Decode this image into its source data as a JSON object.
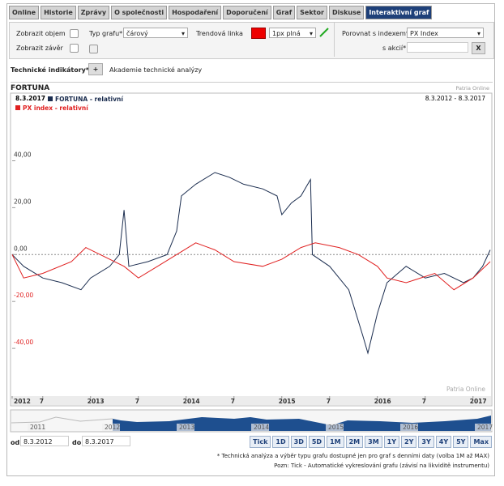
{
  "tabs": [
    "Online",
    "Historie",
    "Zprávy",
    "O společnosti",
    "Hospodaření",
    "Doporučení",
    "Graf",
    "Sektor",
    "Diskuse",
    "Interaktivní graf"
  ],
  "controls": {
    "show_volume": "Zobrazit objem",
    "show_close": "Zobrazit závěr",
    "chart_type_label": "Typ grafu*",
    "chart_type": "čárový",
    "trend_label": "Trendová linka",
    "trend_style": "1px plná",
    "compare_label": "Porovnat s indexem*",
    "compare_index": "PX Index",
    "compare_stock_label": "s akcií*",
    "clear": "X"
  },
  "indicators": {
    "label": "Technické indikátory*:",
    "add": "+",
    "academy": "Akademie technické analýzy"
  },
  "chart_data": {
    "type": "line",
    "title": "FORTUNA",
    "source": "Patria Online",
    "watermark": "Patria Online",
    "date": "8.3.2017",
    "range": "8.3.2012 - 8.3.2017",
    "series": [
      {
        "name": "FORTUNA - relativní",
        "color": "#1b2d4f",
        "x": [
          2012.18,
          2012.3,
          2012.5,
          2012.7,
          2012.9,
          2013.0,
          2013.2,
          2013.3,
          2013.35,
          2013.4,
          2013.6,
          2013.8,
          2013.9,
          2013.95,
          2014.1,
          2014.3,
          2014.45,
          2014.6,
          2014.8,
          2014.95,
          2015.0,
          2015.1,
          2015.2,
          2015.3,
          2015.32,
          2015.5,
          2015.7,
          2015.85,
          2015.9,
          2016.0,
          2016.1,
          2016.3,
          2016.5,
          2016.7,
          2016.9,
          2017.0,
          2017.1,
          2017.18
        ],
        "values": [
          0,
          -5,
          -10,
          -12,
          -15,
          -10,
          -5,
          0,
          19,
          -5,
          -3,
          0,
          10,
          25,
          30,
          35,
          33,
          30,
          28,
          25,
          17,
          22,
          25,
          32,
          0,
          -5,
          -15,
          -35,
          -42,
          -25,
          -12,
          -5,
          -10,
          -8,
          -12,
          -10,
          -5,
          2
        ]
      },
      {
        "name": "PX index - relativní",
        "color": "#e02020",
        "x": [
          2012.18,
          2012.3,
          2012.5,
          2012.8,
          2012.95,
          2013.1,
          2013.35,
          2013.5,
          2013.7,
          2013.9,
          2014.1,
          2014.3,
          2014.5,
          2014.8,
          2015.0,
          2015.2,
          2015.35,
          2015.6,
          2015.8,
          2016.0,
          2016.1,
          2016.3,
          2016.6,
          2016.8,
          2017.0,
          2017.18
        ],
        "values": [
          0,
          -10,
          -8,
          -3,
          3,
          0,
          -5,
          -10,
          -5,
          0,
          5,
          2,
          -3,
          -5,
          -2,
          3,
          5,
          3,
          0,
          -5,
          -10,
          -12,
          -8,
          -15,
          -10,
          -3
        ]
      }
    ],
    "xlim": [
      2012.18,
      2017.18
    ],
    "xticks": [
      {
        "value": 2012.18,
        "label": "2012"
      },
      {
        "value": 2012.5,
        "label": "7"
      },
      2013,
      {
        "value": 2013.5,
        "label": "7"
      },
      2014,
      {
        "value": 2014.5,
        "label": "7"
      },
      2015,
      {
        "value": 2015.5,
        "label": "7"
      },
      2016,
      {
        "value": 2016.5,
        "label": "7"
      },
      2017
    ],
    "ylim": [
      -60,
      64
    ],
    "yticks": [
      {
        "value": 40,
        "label": "40,00"
      },
      {
        "value": 20,
        "label": "20,00"
      },
      {
        "value": 0,
        "label": "0,00"
      },
      {
        "value": -20,
        "label": "-20,00"
      },
      {
        "value": -40,
        "label": "-40,00"
      }
    ]
  },
  "navigator": {
    "years": [
      "2011",
      "2012",
      "2013",
      "2014",
      "2015",
      "2016",
      "2017"
    ],
    "periods": [
      "Tick",
      "1D",
      "3D",
      "5D",
      "1M",
      "2M",
      "3M",
      "1Y",
      "2Y",
      "3Y",
      "4Y",
      "5Y",
      "Max"
    ]
  },
  "dates": {
    "from_label": "od:",
    "from": "8.3.2012",
    "to_label": "do:",
    "to": "8.3.2017"
  },
  "notes": [
    "* Technická analýza a výběr typu grafu dostupné jen pro graf s denními daty (volba 1M až MAX)",
    "Pozn: Tick - Automatické vykreslování grafu (závisí na likviditě instrumentu)"
  ]
}
